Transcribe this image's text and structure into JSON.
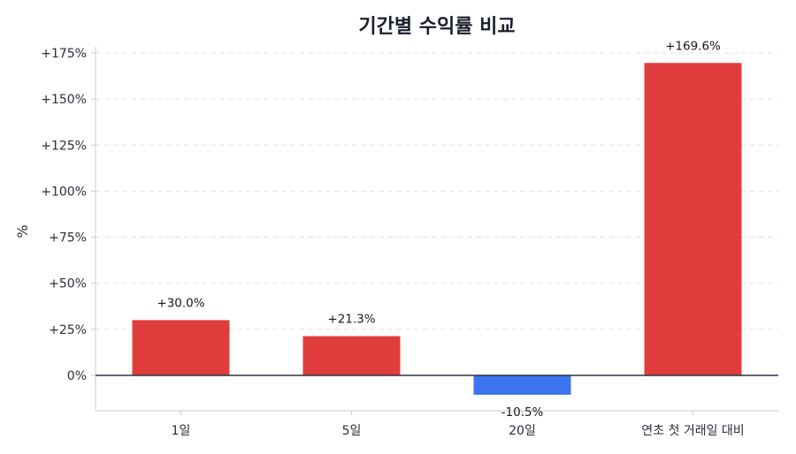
{
  "chart_data": {
    "type": "bar",
    "title": "기간별 수익률 비교",
    "xlabel": "",
    "ylabel": "%",
    "categories": [
      "1일",
      "5일",
      "20일",
      "연초 첫 거래일 대비"
    ],
    "values": [
      30.0,
      21.3,
      -10.5,
      169.6
    ],
    "data_labels": [
      "+30.0%",
      "+21.3%",
      "-10.5%",
      "+169.6%"
    ],
    "ylim": [
      -20,
      180
    ],
    "yticks": [
      0,
      25,
      50,
      75,
      100,
      125,
      150,
      175
    ],
    "ytick_labels": [
      "0%",
      "+25%",
      "+50%",
      "+75%",
      "+100%",
      "+125%",
      "+150%",
      "+175%"
    ],
    "grid": true,
    "colors": {
      "positive": "#e03c3c",
      "negative": "#3b74ee",
      "grid": "#e1e4ea",
      "zero_line": "#2b3445",
      "axis": "#c8ccd4"
    }
  }
}
